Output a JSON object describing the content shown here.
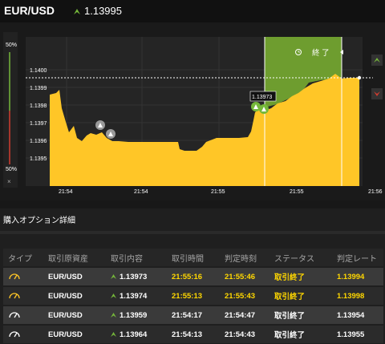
{
  "header": {
    "pair": "EUR/USD",
    "rate": "1.13995"
  },
  "chart": {
    "left_scale": {
      "top": "50%",
      "bottom": "50%",
      "close": "×"
    },
    "y_ticks": [
      "1.1400",
      "1.1399",
      "1.1398",
      "1.1397",
      "1.1396",
      "1.1395"
    ],
    "x_ticks": [
      "21:54",
      "21:54",
      "21:55",
      "21:55",
      "21:56"
    ],
    "end_label": "終 了",
    "entry_tooltip": "1.13973",
    "colors": {
      "area": "#ffc627",
      "zone": "#6e9d2f",
      "up": "#75b83a",
      "down": "#d33c2f"
    }
  },
  "section": {
    "title": "購入オプション詳細"
  },
  "table": {
    "headers": [
      "タイプ",
      "取引原資産",
      "取引内容",
      "取引時間",
      "判定時刻",
      "ステータス",
      "判定レート"
    ],
    "rows": [
      {
        "asset": "EUR/USD",
        "content": "1.13973",
        "time": "21:55:16",
        "judge": "21:55:46",
        "status": "取引終了",
        "rate": "1.13994"
      },
      {
        "asset": "EUR/USD",
        "content": "1.13974",
        "time": "21:55:13",
        "judge": "21:55:43",
        "status": "取引終了",
        "rate": "1.13998"
      },
      {
        "asset": "EUR/USD",
        "content": "1.13959",
        "time": "21:54:17",
        "judge": "21:54:47",
        "status": "取引終了",
        "rate": "1.13954"
      },
      {
        "asset": "EUR/USD",
        "content": "1.13964",
        "time": "21:54:13",
        "judge": "21:54:43",
        "status": "取引終了",
        "rate": "1.13955"
      }
    ]
  }
}
